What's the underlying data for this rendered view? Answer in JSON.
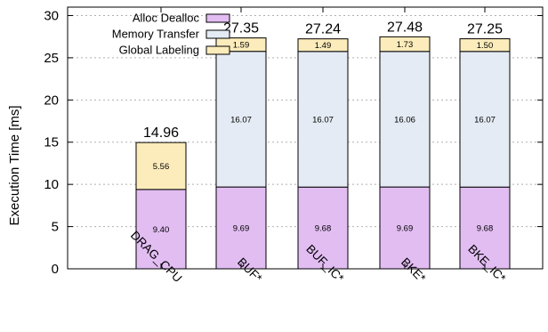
{
  "chart_data": {
    "type": "bar",
    "stacked": true,
    "ylabel": "Execution Time [ms]",
    "xlabel": "",
    "ylim": [
      0,
      31
    ],
    "yticks": [
      0,
      5,
      10,
      15,
      20,
      25,
      30
    ],
    "grid": true,
    "legend_position": "top-left",
    "categories": [
      "DRAG_CPU",
      "BUF*",
      "BUF_IC*",
      "BKE*",
      "BKE_IC*"
    ],
    "series": [
      {
        "name": "Alloc Dealloc",
        "color": "#e2bdf2",
        "values": [
          9.4,
          9.69,
          9.68,
          9.69,
          9.68
        ],
        "labels": [
          "9.40",
          "9.69",
          "9.68",
          "9.69",
          "9.68"
        ]
      },
      {
        "name": "Memory Transfer",
        "color": "#e4ebf4",
        "values": [
          0,
          16.07,
          16.07,
          16.06,
          16.07
        ],
        "labels": [
          "",
          "16.07",
          "16.07",
          "16.06",
          "16.07"
        ]
      },
      {
        "name": "Global Labeling",
        "color": "#fcecbb",
        "values": [
          5.56,
          1.59,
          1.49,
          1.73,
          1.5
        ],
        "labels": [
          "5.56",
          "1.59",
          "1.49",
          "1.73",
          "1.50"
        ]
      }
    ],
    "totals": [
      "14.96",
      "27.35",
      "27.24",
      "27.48",
      "27.25"
    ]
  }
}
